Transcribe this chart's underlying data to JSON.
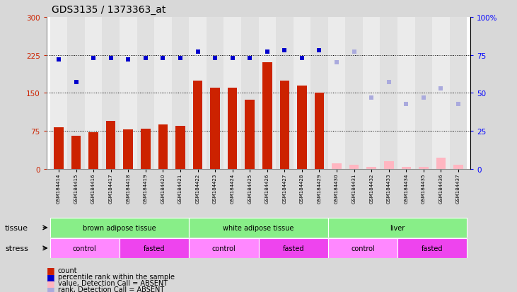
{
  "title": "GDS3135 / 1373363_at",
  "samples": [
    "GSM184414",
    "GSM184415",
    "GSM184416",
    "GSM184417",
    "GSM184418",
    "GSM184419",
    "GSM184420",
    "GSM184421",
    "GSM184422",
    "GSM184423",
    "GSM184424",
    "GSM184425",
    "GSM184426",
    "GSM184427",
    "GSM184428",
    "GSM184429",
    "GSM184430",
    "GSM184431",
    "GSM184432",
    "GSM184433",
    "GSM184434",
    "GSM184435",
    "GSM184436",
    "GSM184437"
  ],
  "count_present": [
    82,
    65,
    72,
    95,
    78,
    80,
    88,
    85,
    175,
    160,
    160,
    137,
    210,
    175,
    165,
    150,
    0,
    0,
    0,
    0,
    0,
    0,
    0,
    0
  ],
  "count_absent": [
    0,
    0,
    0,
    0,
    0,
    0,
    0,
    0,
    0,
    0,
    0,
    0,
    0,
    0,
    0,
    0,
    12,
    8,
    5,
    15,
    4,
    5,
    22,
    8
  ],
  "is_absent": [
    false,
    false,
    false,
    false,
    false,
    false,
    false,
    false,
    false,
    false,
    false,
    false,
    false,
    false,
    false,
    false,
    true,
    true,
    true,
    true,
    true,
    true,
    true,
    true
  ],
  "rank_present_pct": [
    72,
    57,
    73,
    73,
    72,
    73,
    73,
    73,
    77,
    73,
    73,
    73,
    77,
    78,
    73,
    78,
    0,
    0,
    0,
    0,
    0,
    0,
    0,
    0
  ],
  "rank_absent_pct": [
    0,
    0,
    0,
    0,
    0,
    0,
    0,
    0,
    0,
    0,
    0,
    0,
    0,
    0,
    0,
    0,
    70,
    77,
    47,
    57,
    43,
    47,
    53,
    43
  ],
  "ylim_left": [
    0,
    300
  ],
  "ylim_right": [
    0,
    100
  ],
  "yticks_left": [
    0,
    75,
    150,
    225,
    300
  ],
  "yticks_right": [
    0,
    25,
    50,
    75,
    100
  ],
  "ytick_right_labels": [
    "0",
    "25",
    "50",
    "75",
    "100%"
  ],
  "bar_color_present": "#CC2200",
  "bar_color_absent": "#FFB6C1",
  "rank_color_present": "#0000CC",
  "rank_color_absent": "#AAAADD",
  "plot_bg": "#FFFFFF",
  "fig_bg": "#D8D8D8",
  "tissue_defs": [
    {
      "label": "brown adipose tissue",
      "start": 0,
      "end": 8,
      "color": "#88EE88"
    },
    {
      "label": "white adipose tissue",
      "start": 8,
      "end": 16,
      "color": "#88EE88"
    },
    {
      "label": "liver",
      "start": 16,
      "end": 24,
      "color": "#88EE88"
    }
  ],
  "stress_defs": [
    {
      "label": "control",
      "start": 0,
      "end": 4,
      "color": "#FF88FF"
    },
    {
      "label": "fasted",
      "start": 4,
      "end": 8,
      "color": "#EE44EE"
    },
    {
      "label": "control",
      "start": 8,
      "end": 12,
      "color": "#FF88FF"
    },
    {
      "label": "fasted",
      "start": 12,
      "end": 16,
      "color": "#EE44EE"
    },
    {
      "label": "control",
      "start": 16,
      "end": 20,
      "color": "#FF88FF"
    },
    {
      "label": "fasted",
      "start": 20,
      "end": 24,
      "color": "#EE44EE"
    }
  ],
  "legend_items": [
    {
      "color": "#CC2200",
      "label": "count"
    },
    {
      "color": "#0000CC",
      "label": "percentile rank within the sample"
    },
    {
      "color": "#FFB6C1",
      "label": "value, Detection Call = ABSENT"
    },
    {
      "color": "#AAAADD",
      "label": "rank, Detection Call = ABSENT"
    }
  ],
  "hgrid_values": [
    75,
    150,
    225
  ],
  "bar_width": 0.55
}
